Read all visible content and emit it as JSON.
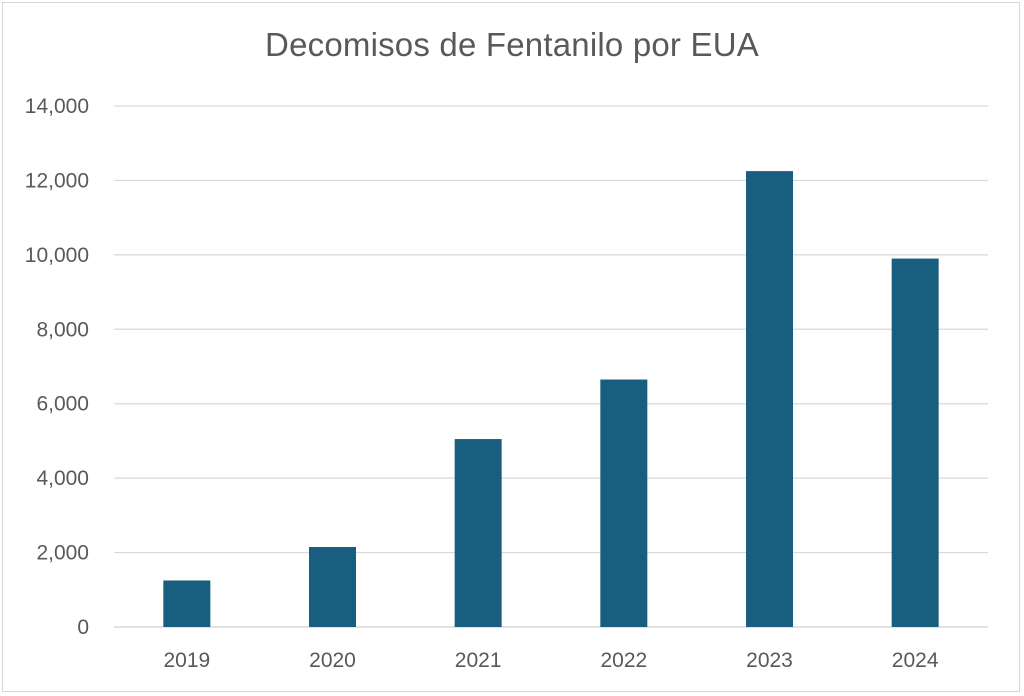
{
  "chart_data": {
    "type": "bar",
    "title": "Decomisos de Fentanilo por EUA",
    "categories": [
      "2019",
      "2020",
      "2021",
      "2022",
      "2023",
      "2024"
    ],
    "values": [
      1250,
      2150,
      5050,
      6650,
      12250,
      9900
    ],
    "ylim": [
      0,
      14000
    ],
    "y_ticks": [
      0,
      2000,
      4000,
      6000,
      8000,
      10000,
      12000,
      14000
    ],
    "y_tick_labels": [
      "0",
      "2,000",
      "4,000",
      "6,000",
      "8,000",
      "10,000",
      "12,000",
      "14,000"
    ],
    "xlabel": "",
    "ylabel": "",
    "grid": true,
    "legend": false,
    "bar_color": "#175e7f",
    "grid_color": "#d9d9d9"
  }
}
